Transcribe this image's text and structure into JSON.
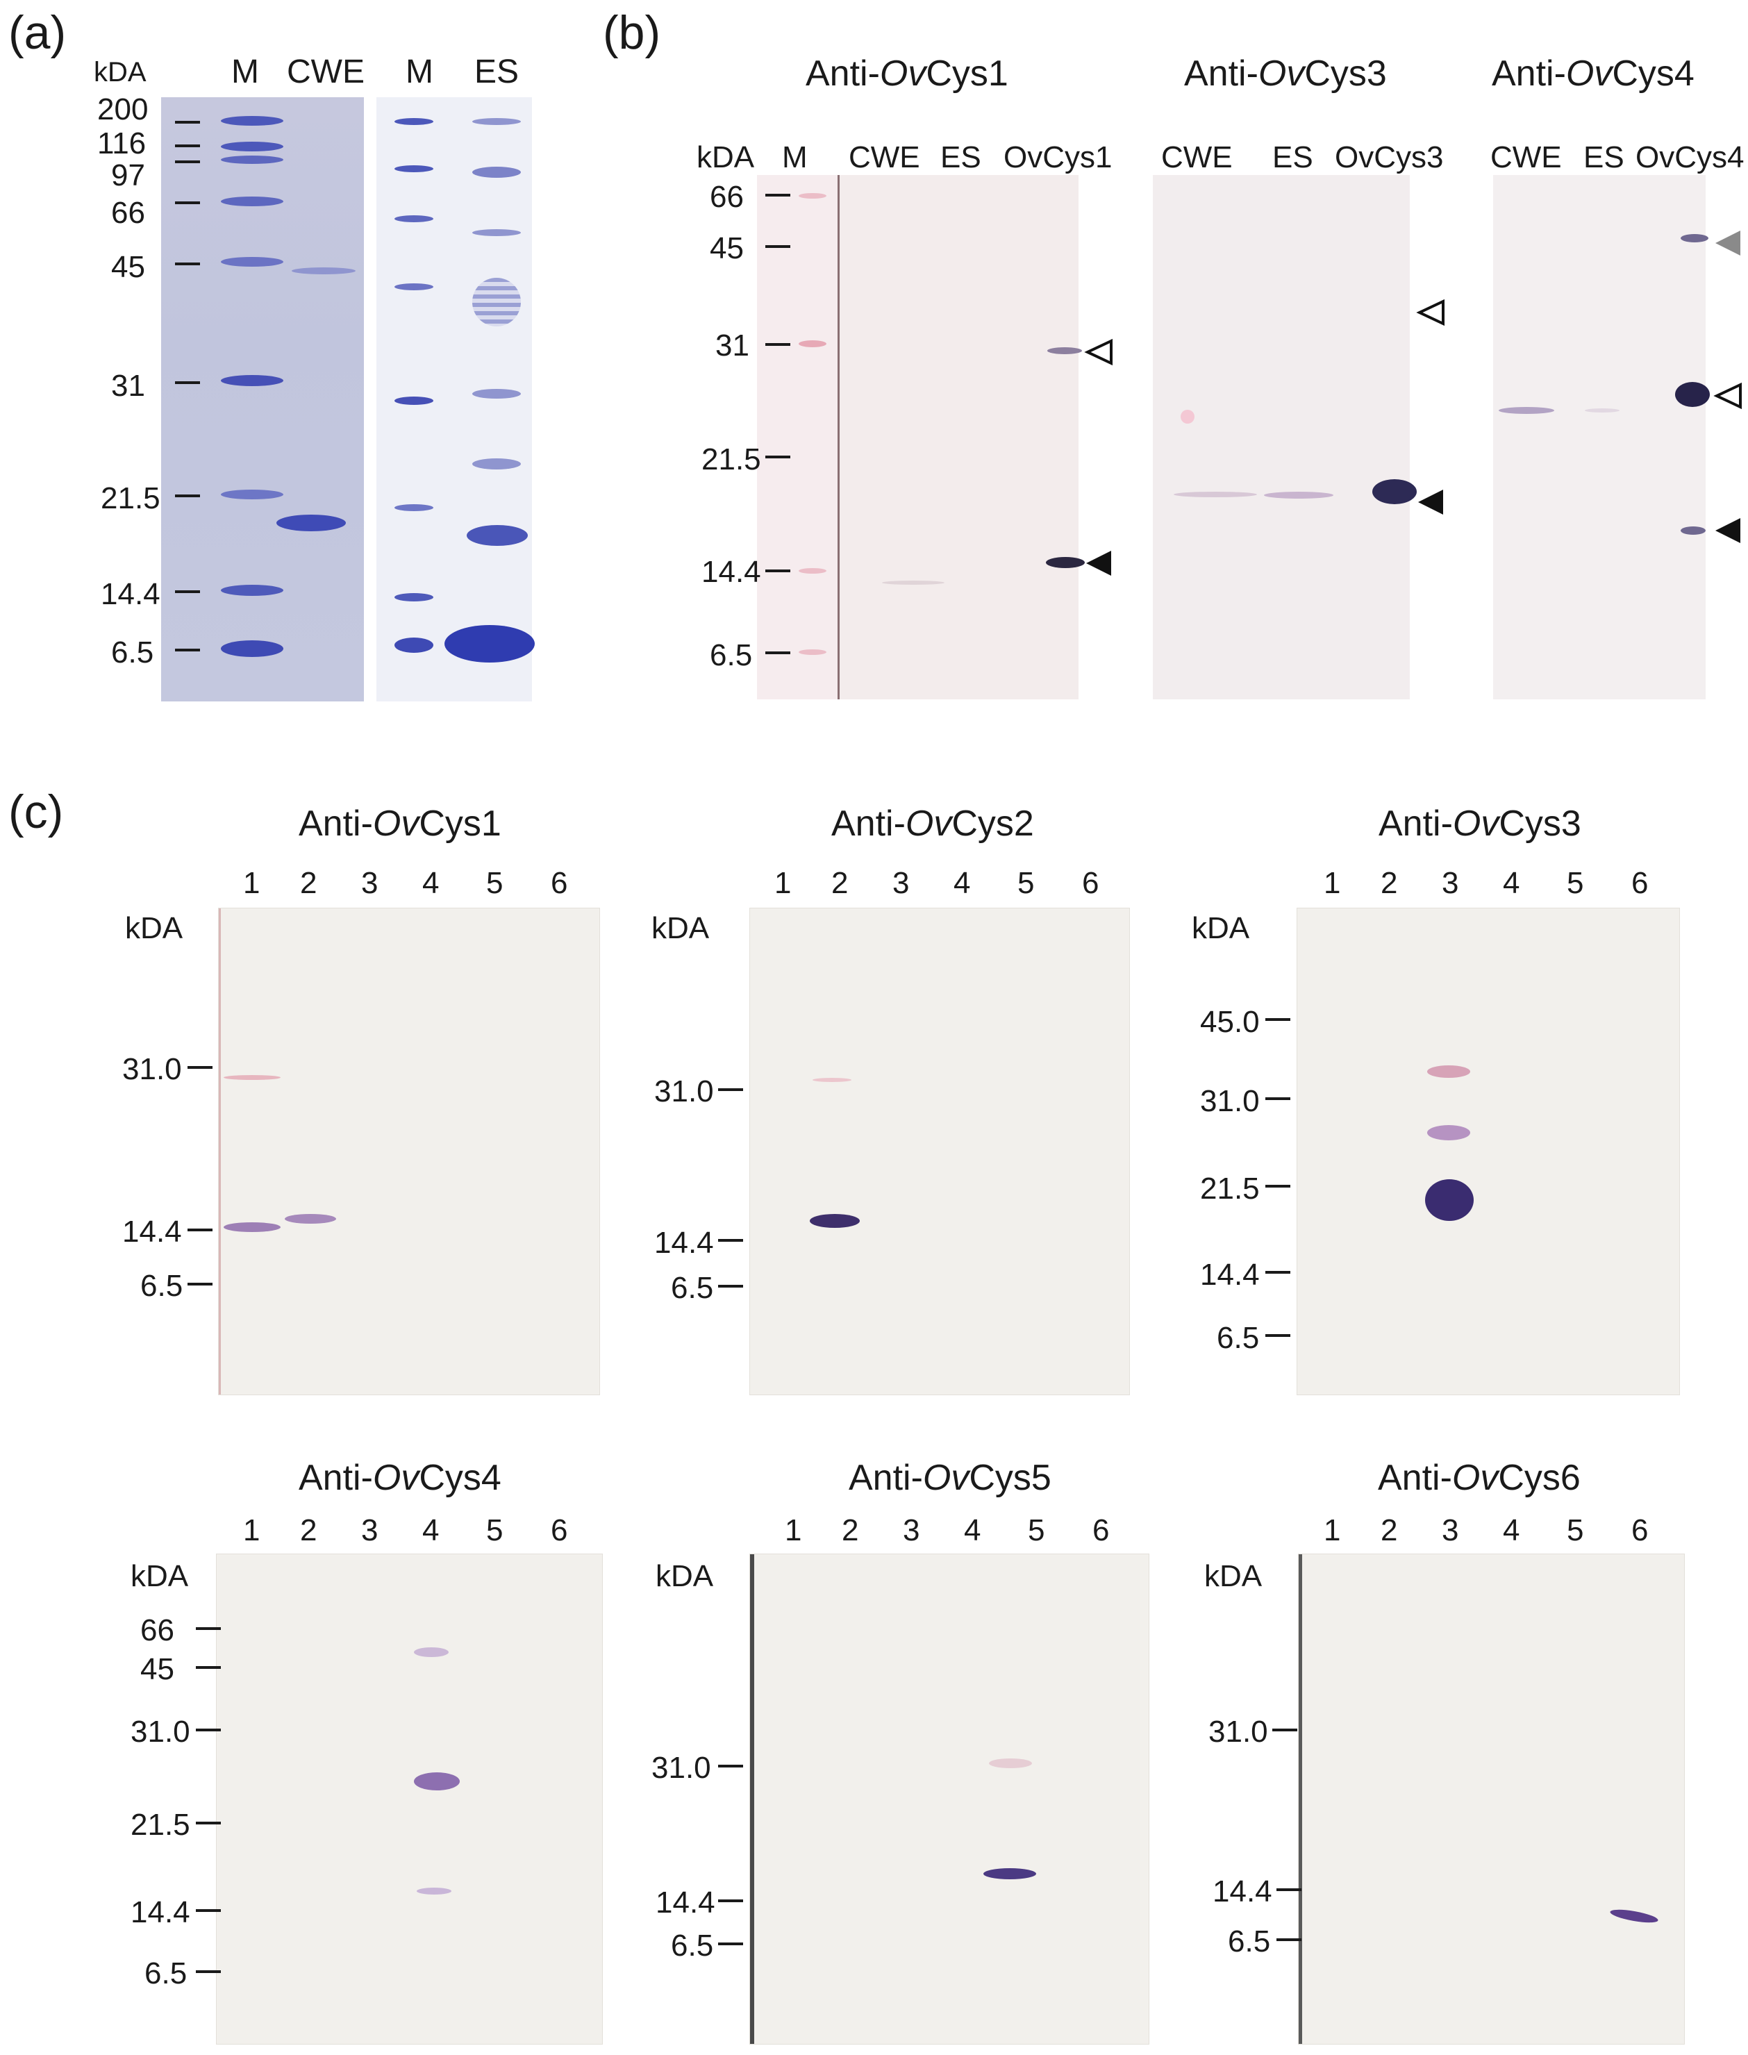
{
  "panels": {
    "a": {
      "letter": "(a)",
      "unit": "kDA",
      "lanes": [
        "M",
        "CWE",
        "M",
        "ES"
      ],
      "markers": [
        "200",
        "116",
        "97",
        "66",
        "45",
        "31",
        "21.5",
        "14.4",
        "6.5"
      ]
    },
    "b": {
      "letter": "(b)",
      "unit": "kDA",
      "markers": [
        "66",
        "45",
        "31",
        "21.5",
        "14.4",
        "6.5"
      ],
      "blots": [
        {
          "title_prefix": "Anti-",
          "title_italic": "Ov",
          "title_suffix": "Cys1",
          "lanes": [
            "M",
            "CWE",
            "ES",
            "OvCys1"
          ]
        },
        {
          "title_prefix": "Anti-",
          "title_italic": "Ov",
          "title_suffix": "Cys3",
          "lanes": [
            "CWE",
            "ES",
            "OvCys3"
          ]
        },
        {
          "title_prefix": "Anti-",
          "title_italic": "Ov",
          "title_suffix": "Cys4",
          "lanes": [
            "CWE",
            "ES",
            "OvCys4"
          ]
        }
      ]
    },
    "c": {
      "letter": "(c)",
      "unit": "kDA",
      "lane_numbers": [
        "1",
        "2",
        "3",
        "4",
        "5",
        "6"
      ],
      "blots": [
        {
          "title_prefix": "Anti-",
          "title_italic": "Ov",
          "title_suffix": "Cys1",
          "markers": [
            "31.0",
            "14.4",
            "6.5"
          ]
        },
        {
          "title_prefix": "Anti-",
          "title_italic": "Ov",
          "title_suffix": "Cys2",
          "markers": [
            "31.0",
            "14.4",
            "6.5"
          ]
        },
        {
          "title_prefix": "Anti-",
          "title_italic": "Ov",
          "title_suffix": "Cys3",
          "markers": [
            "45.0",
            "31.0",
            "21.5",
            "14.4",
            "6.5"
          ]
        },
        {
          "title_prefix": "Anti-",
          "title_italic": "Ov",
          "title_suffix": "Cys4",
          "markers": [
            "66",
            "45",
            "31.0",
            "21.5",
            "14.4",
            "6.5"
          ]
        },
        {
          "title_prefix": "Anti-",
          "title_italic": "Ov",
          "title_suffix": "Cys5",
          "markers": [
            "31.0",
            "14.4",
            "6.5"
          ]
        },
        {
          "title_prefix": "Anti-",
          "title_italic": "Ov",
          "title_suffix": "Cys6",
          "markers": [
            "31.0",
            "14.4",
            "6.5"
          ]
        }
      ]
    }
  },
  "colors": {
    "coomassie_band": "#4a56b8",
    "blot_band": "#5b3f8c",
    "marker_pink": "#e7a9b6"
  },
  "icons": [
    "filled-arrowhead-icon",
    "open-arrowhead-icon",
    "gray-arrowhead-icon"
  ]
}
